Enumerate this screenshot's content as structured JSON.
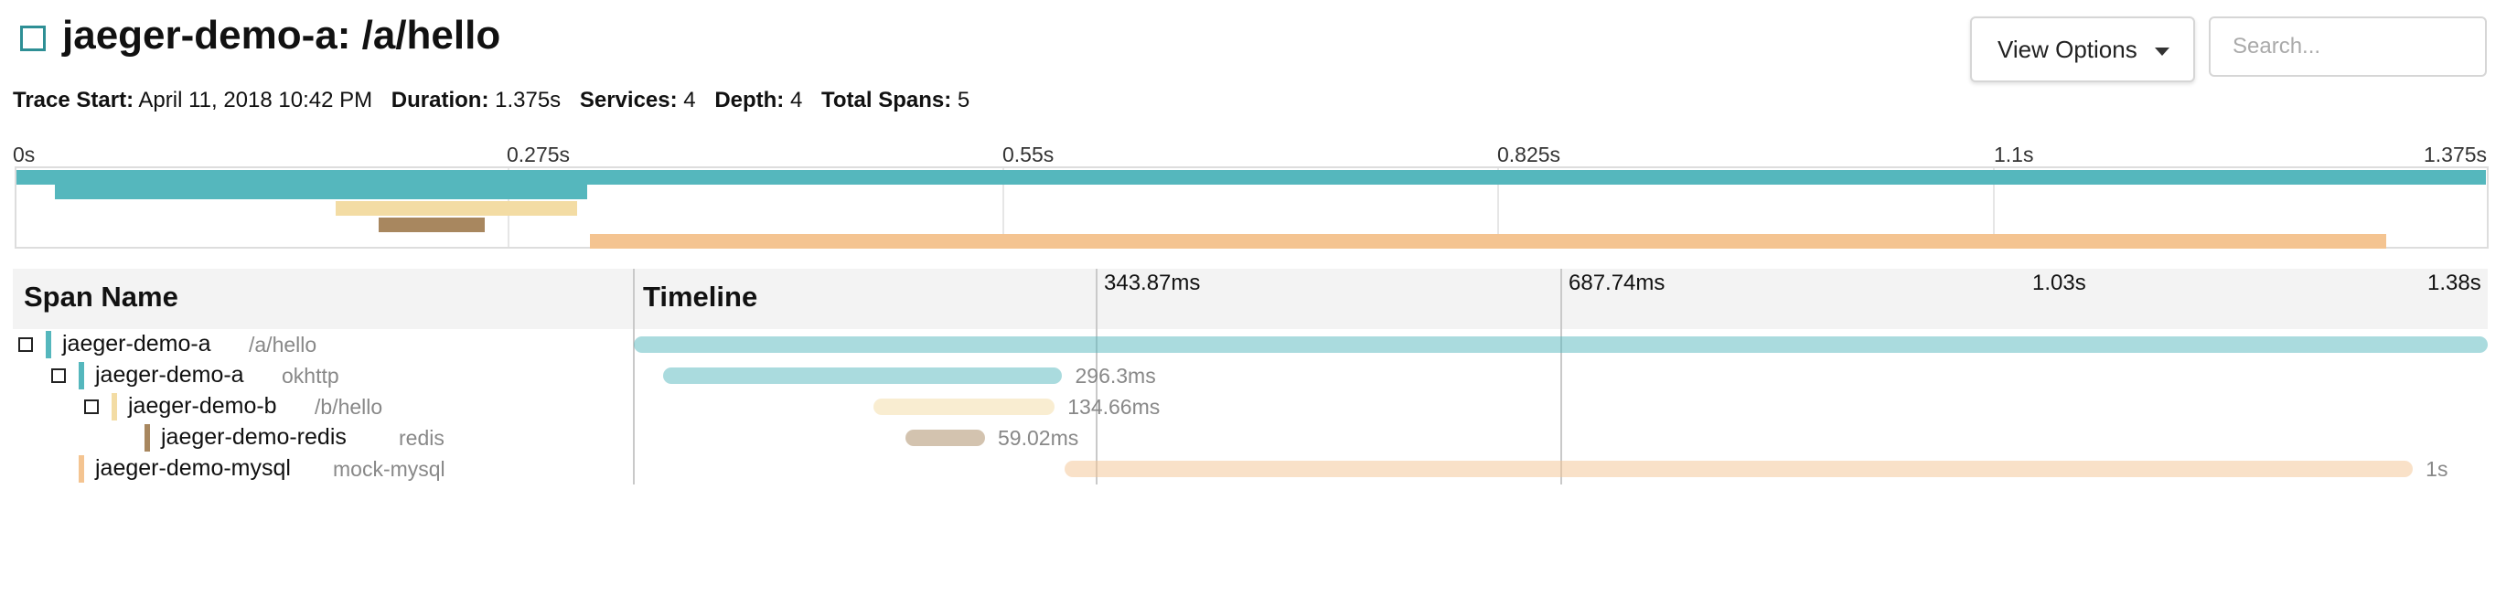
{
  "header": {
    "title": "jaeger-demo-a: /a/hello",
    "view_options": "View Options",
    "search_placeholder": "Search..."
  },
  "meta": {
    "trace_start_label": "Trace Start:",
    "trace_start": "April 11, 2018 10:42 PM",
    "duration_label": "Duration:",
    "duration": "1.375s",
    "services_label": "Services:",
    "services": "4",
    "depth_label": "Depth:",
    "depth": "4",
    "total_spans_label": "Total Spans:",
    "total_spans": "5"
  },
  "minimap": {
    "ticks": [
      "0s",
      "0.275s",
      "0.55s",
      "0.825s",
      "1.1s",
      "1.375s"
    ]
  },
  "detail": {
    "span_name_header": "Span Name",
    "timeline_header": "Timeline",
    "ticks": [
      "343.87ms",
      "687.74ms",
      "1.03s",
      "1.38s"
    ]
  },
  "colors": {
    "jaeger-demo-a": "#55b7bd",
    "jaeger-demo-b": "#f3dca4",
    "jaeger-demo-redis": "#a8875f",
    "jaeger-demo-mysql": "#f4c491"
  },
  "spans": [
    {
      "service": "jaeger-demo-a",
      "operation": "/a/hello",
      "duration": "",
      "depth": 0,
      "toggle": true,
      "start": 0,
      "length": 1.375
    },
    {
      "service": "jaeger-demo-a",
      "operation": "okhttp",
      "duration": "296.3ms",
      "depth": 1,
      "toggle": true,
      "start": 0.0215,
      "length": 0.2963
    },
    {
      "service": "jaeger-demo-b",
      "operation": "/b/hello",
      "duration": "134.66ms",
      "depth": 2,
      "toggle": true,
      "start": 0.1775,
      "length": 0.1347
    },
    {
      "service": "jaeger-demo-redis",
      "operation": "redis",
      "duration": "59.02ms",
      "depth": 3,
      "toggle": false,
      "start": 0.2015,
      "length": 0.059
    },
    {
      "service": "jaeger-demo-mysql",
      "operation": "mock-mysql",
      "duration": "1s",
      "depth": 1,
      "toggle": false,
      "start": 0.3195,
      "length": 1.0
    }
  ]
}
